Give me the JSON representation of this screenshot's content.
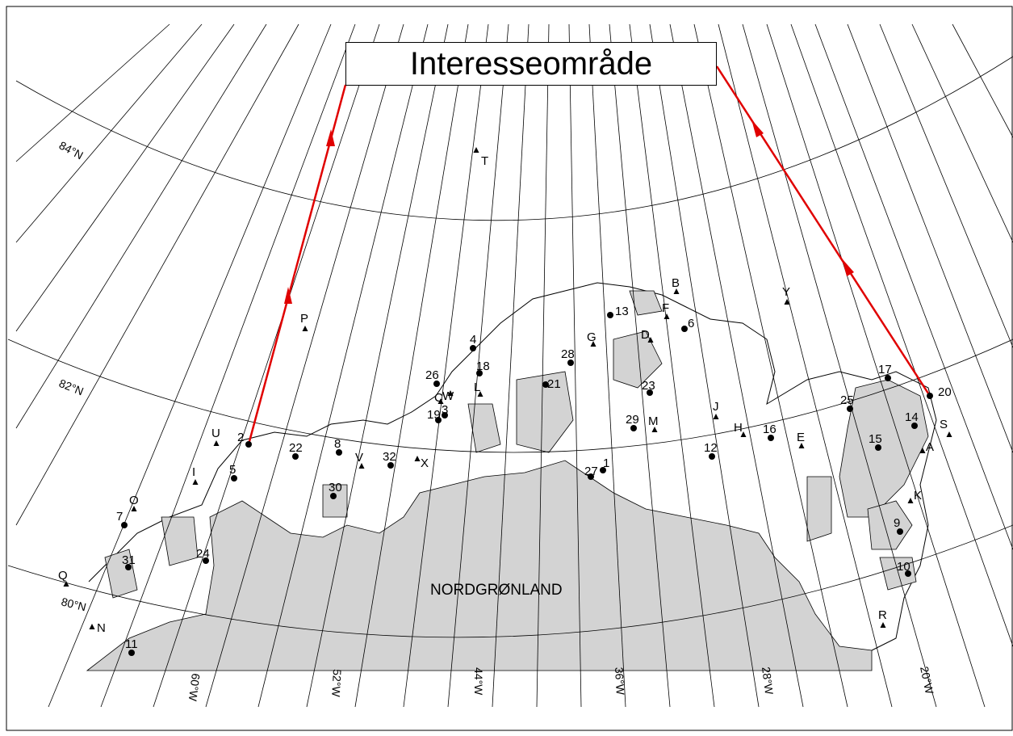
{
  "title": "Interesseområde",
  "region_label": "NORDGRØNLAND",
  "latitudes": [
    "84°N",
    "82°N",
    "80°N"
  ],
  "longitudes": [
    "60°W",
    "52°W",
    "44°W",
    "36°W",
    "28°W",
    "20°W"
  ],
  "colors": {
    "route": "#e00000",
    "land": "#d3d3d3",
    "outline": "#000000",
    "background": "#ffffff"
  },
  "stations_numbered": [
    "1",
    "2",
    "3",
    "4",
    "5",
    "6",
    "7",
    "8",
    "9",
    "10",
    "11",
    "12",
    "13",
    "14",
    "15",
    "16",
    "17",
    "18",
    "19",
    "20",
    "21",
    "22",
    "23",
    "24",
    "25",
    "26",
    "27",
    "28",
    "29",
    "30",
    "31",
    "32"
  ],
  "stations_lettered": [
    "A",
    "B",
    "C",
    "D",
    "E",
    "F",
    "G",
    "H",
    "I",
    "J",
    "K",
    "L",
    "M",
    "N",
    "O",
    "P",
    "Q",
    "R",
    "S",
    "T",
    "U",
    "V",
    "W",
    "X",
    "Y"
  ]
}
